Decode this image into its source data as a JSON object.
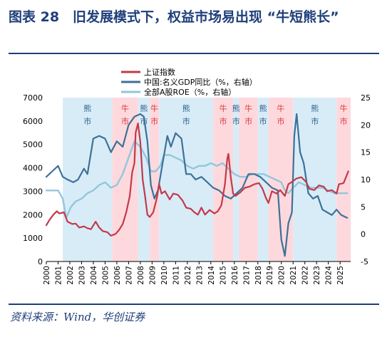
{
  "figure": {
    "title": "图表 28　旧发展模式下，权益市场易出现 “牛短熊长”",
    "source": "资料来源：Wind，华创证券"
  },
  "colors": {
    "title": "#1f3f7a",
    "bull_band": "#fdd9dd",
    "bear_band": "#d8ecf7",
    "shanghai": "#c23a4b",
    "gdp": "#3d7197",
    "roe": "#93c6dc",
    "bull_text": "#d93a3a",
    "bear_text": "#2e5c8a"
  },
  "chart_data": {
    "type": "line",
    "x_range": [
      2000.0,
      2025.9
    ],
    "x_ticks": [
      "2000",
      "2001",
      "2002",
      "2003",
      "2004",
      "2005",
      "2006",
      "2007",
      "2008",
      "2009",
      "2010",
      "2011",
      "2012",
      "2013",
      "2014",
      "2015",
      "2016",
      "2017",
      "2018",
      "2019",
      "2020",
      "2021",
      "2022",
      "2023",
      "2024",
      "2025"
    ],
    "y_left": {
      "range": [
        0,
        7000
      ],
      "ticks": [
        "0",
        "1000",
        "2000",
        "3000",
        "4000",
        "5000",
        "6000",
        "7000"
      ]
    },
    "y_right": {
      "range": [
        -5,
        25
      ],
      "ticks": [
        "-5",
        "0",
        "5",
        "10",
        "15",
        "20",
        "25"
      ]
    },
    "regimes": [
      {
        "kind": "bear",
        "label": "熊市",
        "start": 2001.4,
        "end": 2005.6
      },
      {
        "kind": "bull",
        "label": "牛市",
        "start": 2005.6,
        "end": 2007.8
      },
      {
        "kind": "bear",
        "label": "熊市",
        "start": 2007.8,
        "end": 2008.8
      },
      {
        "kind": "bull",
        "label": "牛市",
        "start": 2008.8,
        "end": 2009.6
      },
      {
        "kind": "bear",
        "label": "熊市",
        "start": 2009.6,
        "end": 2014.2
      },
      {
        "kind": "bull",
        "label": "牛市",
        "start": 2014.2,
        "end": 2015.9
      },
      {
        "kind": "bear",
        "label": "熊市",
        "start": 2015.9,
        "end": 2016.4
      },
      {
        "kind": "bull",
        "label": "牛市",
        "start": 2016.4,
        "end": 2018.0
      },
      {
        "kind": "bear",
        "label": "熊市",
        "start": 2018.0,
        "end": 2018.9
      },
      {
        "kind": "bull",
        "label": "牛市",
        "start": 2018.9,
        "end": 2021.0
      },
      {
        "kind": "bear",
        "label": "熊市",
        "start": 2021.0,
        "end": 2024.7
      },
      {
        "kind": "bull",
        "label": "牛市",
        "start": 2024.7,
        "end": 2025.9
      }
    ],
    "series": [
      {
        "name": "上证指数",
        "axis": "left",
        "x": [
          2000.0,
          2000.3,
          2000.6,
          2000.9,
          2001.1,
          2001.5,
          2001.8,
          2002.2,
          2002.5,
          2002.8,
          2003.2,
          2003.5,
          2003.8,
          2004.2,
          2004.5,
          2004.8,
          2005.2,
          2005.5,
          2005.9,
          2006.2,
          2006.5,
          2006.8,
          2007.1,
          2007.3,
          2007.5,
          2007.6,
          2007.8,
          2008.0,
          2008.2,
          2008.4,
          2008.6,
          2008.8,
          2009.1,
          2009.4,
          2009.6,
          2009.8,
          2010.1,
          2010.5,
          2010.8,
          2011.2,
          2011.6,
          2011.9,
          2012.3,
          2012.6,
          2012.9,
          2013.2,
          2013.5,
          2013.9,
          2014.3,
          2014.6,
          2014.9,
          2015.2,
          2015.4,
          2015.5,
          2015.7,
          2015.9,
          2016.1,
          2016.5,
          2016.9,
          2017.3,
          2017.7,
          2018.1,
          2018.4,
          2018.7,
          2018.9,
          2019.2,
          2019.6,
          2019.9,
          2020.3,
          2020.6,
          2020.9,
          2021.3,
          2021.7,
          2022.1,
          2022.4,
          2022.8,
          2023.2,
          2023.6,
          2023.9,
          2024.3,
          2024.7,
          2024.9,
          2025.3,
          2025.7
        ],
        "values": [
          1550,
          1800,
          2000,
          2150,
          2050,
          2100,
          1700,
          1600,
          1620,
          1450,
          1500,
          1420,
          1380,
          1700,
          1450,
          1300,
          1250,
          1100,
          1180,
          1350,
          1600,
          2100,
          2800,
          3800,
          4200,
          5500,
          5900,
          5100,
          3500,
          2800,
          2000,
          1900,
          2100,
          2700,
          3300,
          2900,
          3000,
          2650,
          2900,
          2850,
          2600,
          2300,
          2250,
          2100,
          2000,
          2300,
          2000,
          2200,
          2050,
          2150,
          2400,
          3300,
          4400,
          4600,
          3600,
          2900,
          2800,
          2950,
          3150,
          3200,
          3300,
          3350,
          3100,
          2700,
          2500,
          3000,
          2900,
          3050,
          2800,
          3300,
          3400,
          3550,
          3600,
          3400,
          3100,
          3050,
          3250,
          3200,
          3000,
          3050,
          2900,
          3300,
          3350,
          3850
        ]
      },
      {
        "name": "中国:名义GDP同比（%，右轴）",
        "axis": "right",
        "x": [
          2000.0,
          2000.5,
          2001.0,
          2001.4,
          2001.8,
          2002.3,
          2002.7,
          2003.2,
          2003.5,
          2004.0,
          2004.5,
          2005.0,
          2005.5,
          2006.0,
          2006.5,
          2007.0,
          2007.5,
          2008.0,
          2008.3,
          2008.6,
          2008.9,
          2009.2,
          2009.5,
          2009.9,
          2010.3,
          2010.6,
          2011.0,
          2011.5,
          2011.9,
          2012.3,
          2012.7,
          2013.2,
          2013.7,
          2014.2,
          2014.7,
          2015.2,
          2015.7,
          2016.2,
          2016.7,
          2017.2,
          2017.7,
          2018.2,
          2018.7,
          2019.2,
          2019.7,
          2020.0,
          2020.3,
          2020.6,
          2020.9,
          2021.1,
          2021.3,
          2021.6,
          2021.9,
          2022.3,
          2022.7,
          2023.1,
          2023.5,
          2023.9,
          2024.3,
          2024.7,
          2025.1,
          2025.6
        ],
        "values": [
          10.5,
          11.5,
          12.5,
          10.5,
          10,
          9.5,
          10,
          12,
          11,
          17.5,
          18,
          17.5,
          15,
          17,
          16,
          20,
          21.5,
          22,
          21.5,
          17,
          9,
          6.5,
          8,
          13,
          18,
          16,
          18.5,
          17.5,
          11,
          11,
          10,
          10.5,
          9.5,
          8.5,
          8,
          7,
          6.5,
          7.5,
          8.5,
          11,
          11,
          10.5,
          9.5,
          8.5,
          8,
          -1,
          -4,
          2,
          4,
          18,
          22,
          15,
          13,
          7.5,
          6.5,
          7,
          4.5,
          4,
          3.5,
          4.5,
          3.5,
          3
        ]
      },
      {
        "name": "全部A股ROE（%，右轴）",
        "axis": "right",
        "x": [
          2000.0,
          2000.5,
          2001.0,
          2001.4,
          2001.7,
          2002.1,
          2002.5,
          2003.0,
          2003.5,
          2004.0,
          2004.5,
          2005.0,
          2005.5,
          2006.0,
          2006.5,
          2007.0,
          2007.5,
          2008.0,
          2008.5,
          2008.9,
          2009.3,
          2009.7,
          2010.0,
          2010.5,
          2011.0,
          2011.5,
          2012.0,
          2012.5,
          2013.0,
          2013.5,
          2014.0,
          2014.5,
          2015.0,
          2015.5,
          2016.0,
          2016.5,
          2017.0,
          2017.5,
          2018.0,
          2018.5,
          2019.0,
          2019.5,
          2020.0,
          2020.3,
          2020.6,
          2021.0,
          2021.5,
          2022.0,
          2022.5,
          2023.0,
          2023.5,
          2024.0,
          2024.5,
          2025.0,
          2025.6
        ],
        "values": [
          8,
          8,
          8,
          6.5,
          3,
          5,
          6,
          6.5,
          7.5,
          8,
          9,
          9.5,
          8.5,
          9,
          11,
          14,
          17,
          16,
          14,
          11.5,
          11.5,
          12.5,
          14.5,
          14.5,
          14,
          13.5,
          12.5,
          12,
          12.5,
          12.5,
          13,
          12.5,
          13,
          12,
          11,
          10.5,
          10.5,
          11,
          11,
          11,
          10.5,
          10,
          9.5,
          8,
          7.5,
          8.5,
          9.5,
          9,
          8.5,
          8.5,
          8.5,
          8,
          7.5,
          7.5,
          7.5
        ]
      }
    ]
  }
}
